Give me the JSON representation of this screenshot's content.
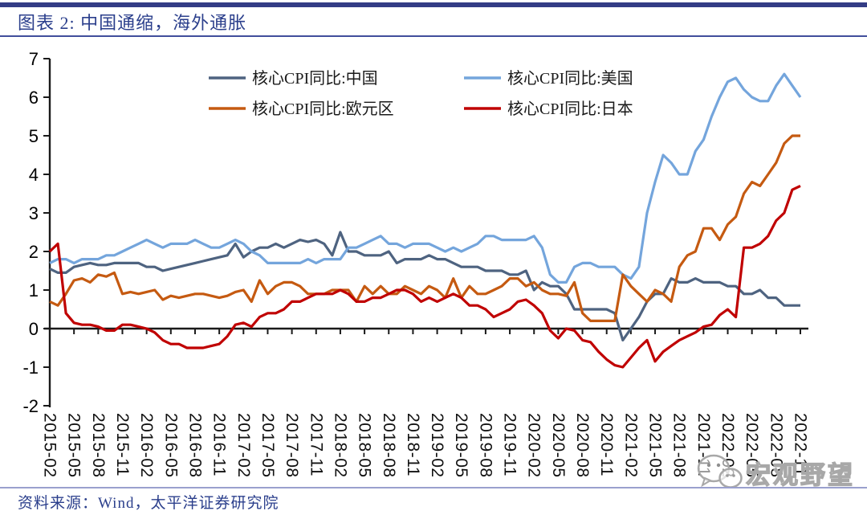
{
  "header": {
    "title": "图表 2:  中国通缩，海外通胀"
  },
  "footer": {
    "source": "资料来源：Wind，太平洋证券研究院"
  },
  "watermark": {
    "icon": "wechat-bubbles-icon",
    "text": "宏观野望"
  },
  "chart_data": {
    "type": "line",
    "title": "中国通缩，海外通胀",
    "x_start": "2015-02",
    "x_end": "2022-11",
    "x_frequency": "monthly",
    "x_tick_labels": [
      "2015-02",
      "2015-05",
      "2015-08",
      "2015-11",
      "2016-02",
      "2016-05",
      "2016-08",
      "2016-11",
      "2017-02",
      "2017-05",
      "2017-08",
      "2017-11",
      "2018-02",
      "2018-05",
      "2018-08",
      "2018-11",
      "2019-02",
      "2019-05",
      "2019-08",
      "2019-11",
      "2020-02",
      "2020-05",
      "2020-08",
      "2020-11",
      "2021-02",
      "2021-05",
      "2021-08",
      "2021-11",
      "2022-02",
      "2022-05",
      "2022-08",
      "2022-11"
    ],
    "ylim": [
      -2,
      7
    ],
    "y_ticks": [
      7,
      6,
      5,
      4,
      3,
      2,
      1,
      0,
      -1,
      -2
    ],
    "grid": false,
    "legend_position": "top-inside",
    "series": [
      {
        "id": "china",
        "name": "核心CPI同比:中国",
        "color": "#4E6380",
        "values": [
          1.55,
          1.45,
          1.45,
          1.6,
          1.65,
          1.7,
          1.65,
          1.65,
          1.7,
          1.7,
          1.7,
          1.7,
          1.6,
          1.6,
          1.5,
          1.55,
          1.6,
          1.65,
          1.7,
          1.75,
          1.8,
          1.85,
          1.9,
          2.2,
          1.85,
          2.0,
          2.1,
          2.1,
          2.2,
          2.1,
          2.2,
          2.3,
          2.25,
          2.3,
          2.2,
          1.9,
          2.5,
          2.0,
          2.0,
          1.9,
          1.9,
          1.9,
          2.0,
          1.7,
          1.8,
          1.8,
          1.8,
          1.9,
          1.8,
          1.8,
          1.7,
          1.6,
          1.6,
          1.6,
          1.5,
          1.5,
          1.5,
          1.4,
          1.4,
          1.5,
          1.0,
          1.2,
          1.1,
          1.1,
          0.9,
          0.5,
          0.5,
          0.5,
          0.5,
          0.5,
          0.4,
          -0.3,
          0.0,
          0.3,
          0.7,
          0.9,
          0.9,
          1.3,
          1.2,
          1.2,
          1.3,
          1.2,
          1.2,
          1.2,
          1.1,
          1.1,
          0.9,
          0.9,
          1.0,
          0.8,
          0.8,
          0.6,
          0.6,
          0.6
        ]
      },
      {
        "id": "us",
        "name": "核心CPI同比:美国",
        "color": "#74A5DC",
        "values": [
          1.7,
          1.8,
          1.8,
          1.7,
          1.8,
          1.8,
          1.8,
          1.9,
          1.9,
          2.0,
          2.1,
          2.2,
          2.3,
          2.2,
          2.1,
          2.2,
          2.2,
          2.2,
          2.3,
          2.2,
          2.1,
          2.1,
          2.2,
          2.3,
          2.2,
          2.0,
          1.9,
          1.7,
          1.7,
          1.7,
          1.7,
          1.7,
          1.8,
          1.7,
          1.8,
          1.8,
          1.8,
          2.1,
          2.1,
          2.2,
          2.3,
          2.4,
          2.2,
          2.2,
          2.1,
          2.2,
          2.2,
          2.2,
          2.1,
          2.0,
          2.1,
          2.0,
          2.1,
          2.2,
          2.4,
          2.4,
          2.3,
          2.3,
          2.3,
          2.3,
          2.4,
          2.1,
          1.4,
          1.2,
          1.2,
          1.6,
          1.7,
          1.7,
          1.6,
          1.6,
          1.6,
          1.4,
          1.3,
          1.6,
          3.0,
          3.8,
          4.5,
          4.3,
          4.0,
          4.0,
          4.6,
          4.9,
          5.5,
          6.0,
          6.4,
          6.5,
          6.2,
          6.0,
          5.9,
          5.9,
          6.3,
          6.6,
          6.3,
          6.0
        ]
      },
      {
        "id": "eurozone",
        "name": "核心CPI同比:欧元区",
        "color": "#C55A11",
        "values": [
          0.7,
          0.6,
          0.9,
          1.25,
          1.3,
          1.2,
          1.4,
          1.35,
          1.45,
          0.9,
          0.95,
          0.9,
          0.95,
          1.0,
          0.75,
          0.85,
          0.8,
          0.85,
          0.9,
          0.9,
          0.85,
          0.8,
          0.85,
          0.95,
          1.0,
          0.7,
          1.25,
          0.9,
          1.1,
          1.2,
          1.2,
          1.1,
          0.9,
          0.9,
          0.9,
          1.0,
          1.0,
          1.0,
          0.7,
          1.1,
          0.9,
          1.1,
          0.9,
          0.9,
          1.1,
          1.0,
          0.9,
          1.1,
          1.0,
          0.8,
          1.3,
          0.8,
          1.1,
          0.9,
          0.9,
          1.0,
          1.1,
          1.3,
          1.3,
          1.1,
          1.2,
          1.0,
          0.9,
          0.9,
          0.85,
          1.2,
          0.4,
          0.2,
          0.2,
          0.2,
          0.2,
          1.4,
          1.1,
          0.9,
          0.7,
          1.0,
          0.9,
          0.7,
          1.6,
          1.9,
          2.0,
          2.6,
          2.6,
          2.3,
          2.7,
          2.9,
          3.5,
          3.8,
          3.7,
          4.0,
          4.3,
          4.8,
          5.0,
          5.0
        ]
      },
      {
        "id": "japan",
        "name": "核心CPI同比:日本",
        "color": "#C00000",
        "values": [
          2.0,
          2.2,
          0.4,
          0.15,
          0.1,
          0.1,
          0.05,
          -0.05,
          -0.05,
          0.1,
          0.1,
          0.05,
          0.0,
          -0.1,
          -0.3,
          -0.4,
          -0.4,
          -0.5,
          -0.5,
          -0.5,
          -0.45,
          -0.4,
          -0.2,
          0.1,
          0.15,
          0.05,
          0.3,
          0.4,
          0.4,
          0.5,
          0.7,
          0.7,
          0.8,
          0.9,
          0.9,
          0.9,
          1.0,
          0.9,
          0.7,
          0.7,
          0.8,
          0.8,
          0.9,
          1.0,
          1.0,
          0.9,
          0.7,
          0.8,
          0.7,
          0.8,
          0.9,
          0.8,
          0.6,
          0.6,
          0.5,
          0.3,
          0.4,
          0.5,
          0.7,
          0.75,
          0.6,
          0.4,
          -0.05,
          -0.25,
          0.0,
          -0.05,
          -0.3,
          -0.35,
          -0.6,
          -0.8,
          -0.95,
          -1.0,
          -0.75,
          -0.5,
          -0.3,
          -0.85,
          -0.6,
          -0.45,
          -0.3,
          -0.2,
          -0.1,
          0.05,
          0.1,
          0.35,
          0.5,
          0.3,
          2.1,
          2.1,
          2.2,
          2.4,
          2.8,
          3.0,
          3.6,
          3.7
        ]
      }
    ]
  }
}
